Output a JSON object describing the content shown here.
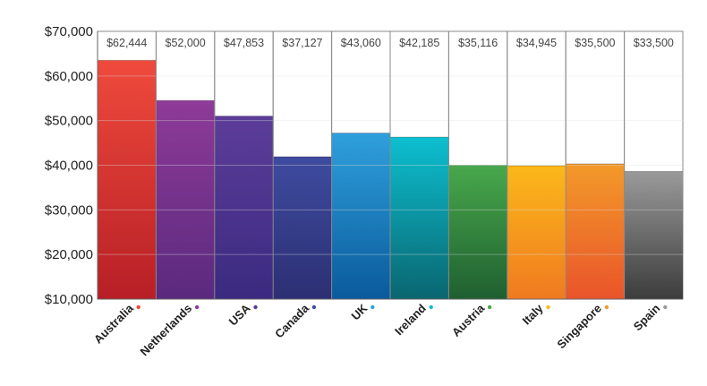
{
  "chart_data": {
    "type": "bar",
    "title": "",
    "xlabel": "",
    "ylabel": "",
    "ylim": [
      10000,
      70000
    ],
    "yticks": [
      10000,
      20000,
      30000,
      40000,
      50000,
      60000,
      70000
    ],
    "ytick_labels": [
      "$10,000",
      "$20,000",
      "$30,000",
      "$40,000",
      "$50,000",
      "$60,000",
      "$70,000"
    ],
    "grid": true,
    "categories": [
      "Australia",
      "Netherlands",
      "USA",
      "Canada",
      "UK",
      "Ireland",
      "Austria",
      "Italy",
      "Singapore",
      "Spain"
    ],
    "value_labels": [
      "$62,444",
      "$52,000",
      "$47,853",
      "$37,127",
      "$43,060",
      "$42,185",
      "$35,116",
      "$34,945",
      "$35,500",
      "$33,500"
    ],
    "values": [
      62444,
      52000,
      47853,
      37127,
      43060,
      42185,
      35116,
      34945,
      35500,
      33500
    ],
    "bar_heights": [
      63500,
      54500,
      51000,
      41900,
      47200,
      46300,
      40000,
      39900,
      40300,
      38600
    ],
    "colors": [
      [
        "#ef4a3c",
        "#b71f26"
      ],
      [
        "#8e3a98",
        "#5a2a7e"
      ],
      [
        "#5c3d99",
        "#3b2a80"
      ],
      [
        "#3e4b9f",
        "#2c2f73"
      ],
      [
        "#2fa0dc",
        "#0a5a9c"
      ],
      [
        "#0cbfd0",
        "#0a6670"
      ],
      [
        "#48a84c",
        "#1f5f30"
      ],
      [
        "#fbb81a",
        "#f07a20"
      ],
      [
        "#f39a2a",
        "#e9542a"
      ],
      [
        "#9a9a9a",
        "#3c3c3c"
      ]
    ]
  }
}
